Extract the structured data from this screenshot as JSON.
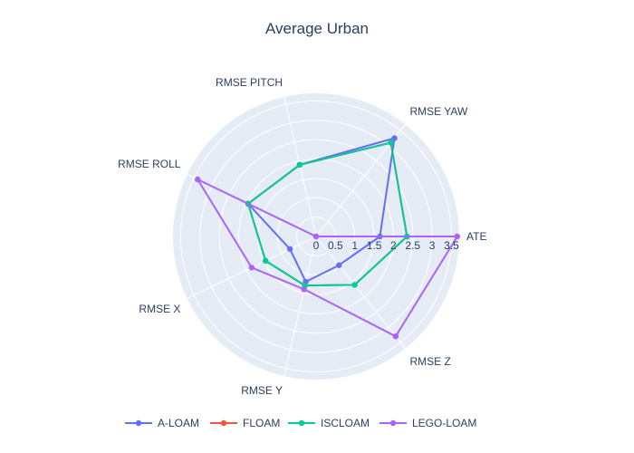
{
  "chart_data": {
    "type": "radar",
    "title": "Average Urban",
    "axes": [
      "ATE",
      "RMSE YAW",
      "RMSE PITCH",
      "RMSE ROLL",
      "RMSE X",
      "RMSE Y",
      "RMSE Z"
    ],
    "radial_range": [
      0,
      3.7
    ],
    "radial_ticks": [
      "0",
      "0.5",
      "1",
      "1.5",
      "2",
      "2.5",
      "3",
      "3.5"
    ],
    "radial_tick_values": [
      0,
      0.5,
      1,
      1.5,
      2,
      2.5,
      3,
      3.5
    ],
    "grid": true,
    "legend_position": "bottom",
    "series": [
      {
        "name": "A-LOAM",
        "color": "#636efa",
        "values": [
          1.65,
          3.25,
          1.9,
          1.95,
          0.75,
          1.2,
          0.95
        ]
      },
      {
        "name": "FLOAM",
        "color": "#ef553b",
        "values": [
          2.35,
          3.1,
          1.9,
          1.95,
          1.45,
          1.3,
          1.6
        ]
      },
      {
        "name": "ISCLOAM",
        "color": "#00cc96",
        "values": [
          2.35,
          3.1,
          1.9,
          1.95,
          1.45,
          1.3,
          1.6
        ]
      },
      {
        "name": "LEGO-LOAM",
        "color": "#ab63fa",
        "values": [
          3.65,
          0.0,
          0.0,
          3.4,
          1.85,
          1.4,
          3.3
        ]
      }
    ]
  }
}
